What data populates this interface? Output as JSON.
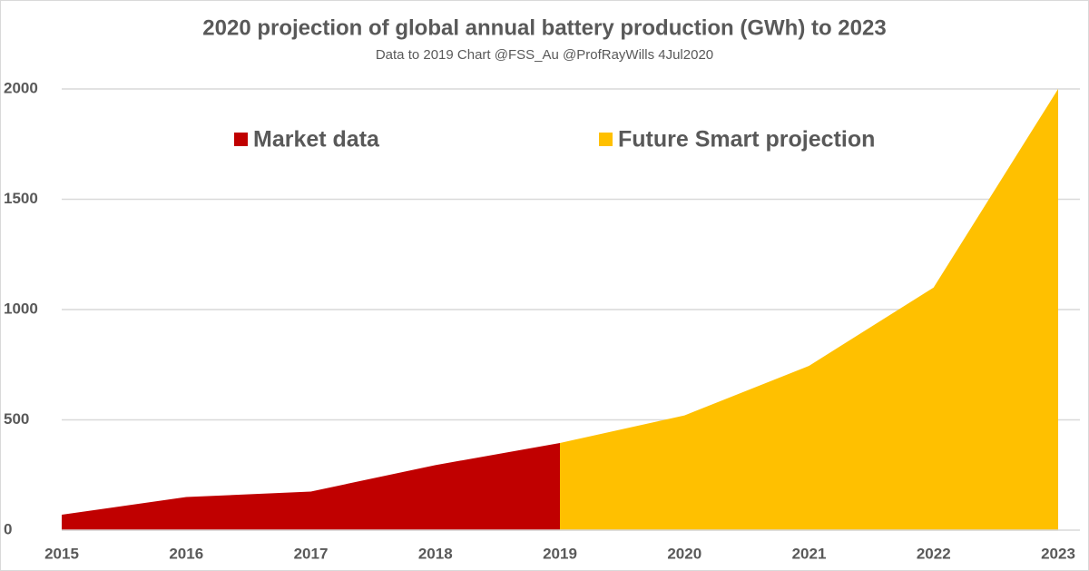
{
  "chart_data": {
    "type": "area",
    "title": "2020 projection of global annual battery production (GWh) to 2023",
    "subtitle": "Data to 2019 Chart @FSS_Au @ProfRayWills 4Jul2020",
    "categories": [
      "2015",
      "2016",
      "2017",
      "2018",
      "2019",
      "2020",
      "2021",
      "2022",
      "2023"
    ],
    "series": [
      {
        "name": "Market data",
        "color": "#c00000",
        "values": [
          70,
          150,
          175,
          295,
          395,
          null,
          null,
          null,
          null
        ]
      },
      {
        "name": "Future Smart projection",
        "color": "#ffc000",
        "values": [
          null,
          null,
          null,
          null,
          395,
          520,
          745,
          1100,
          2000
        ]
      }
    ],
    "ylim": [
      0,
      2000
    ],
    "yticks": [
      0,
      500,
      1000,
      1500,
      2000
    ],
    "grid": true
  }
}
